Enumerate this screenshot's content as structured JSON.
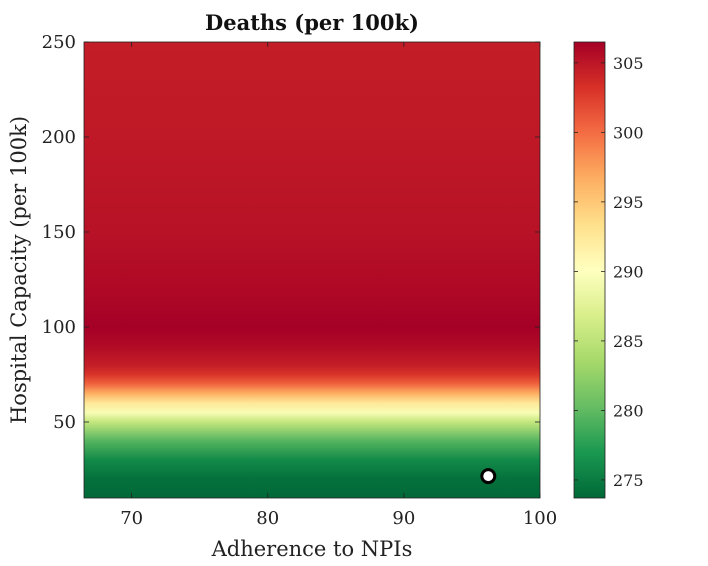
{
  "chart_data": {
    "type": "heatmap",
    "title": "Deaths (per 100k)",
    "xlabel": "Adherence to NPIs",
    "ylabel": "Hospital Capacity (per 100k)",
    "xlim": [
      66.5,
      100
    ],
    "ylim": [
      10,
      250
    ],
    "xticks": [
      70,
      80,
      90,
      100
    ],
    "yticks": [
      50,
      100,
      150,
      200,
      250
    ],
    "colorbar": {
      "range": [
        273.7,
        306.5
      ],
      "ticks": [
        275,
        280,
        285,
        290,
        295,
        300,
        305
      ],
      "colormap": "RdYlGn (reversed)",
      "colors": [
        "#006837",
        "#1a9850",
        "#66bd63",
        "#a6d96a",
        "#d9ef8b",
        "#ffffbf",
        "#fee08b",
        "#fdae61",
        "#f46d43",
        "#d73027",
        "#a50026"
      ]
    },
    "profile": {
      "note": "values vary only with hospital capacity",
      "y": [
        10,
        20,
        30,
        40,
        50,
        55,
        60,
        65,
        70,
        75,
        80,
        90,
        100,
        115,
        150,
        200,
        250
      ],
      "value": [
        273.8,
        274.3,
        276.0,
        279.5,
        285.5,
        289.5,
        292.5,
        296.5,
        300.5,
        303.0,
        304.5,
        305.8,
        306.5,
        306.0,
        305.3,
        304.8,
        304.5
      ]
    },
    "marker": {
      "x": 96.2,
      "y": 21.5
    }
  }
}
